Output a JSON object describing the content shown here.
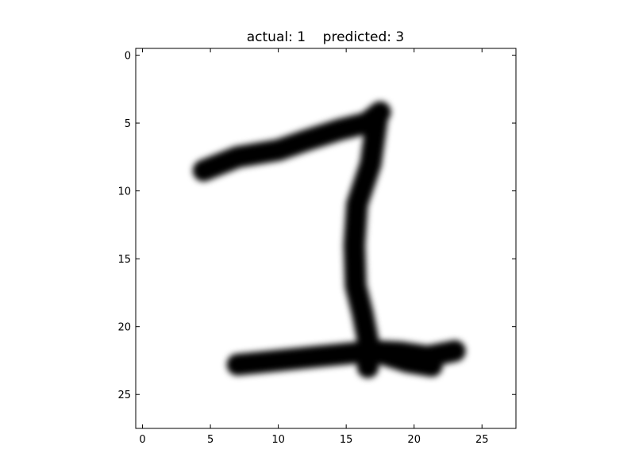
{
  "chart_data": {
    "type": "heatmap",
    "title": "actual: 1    predicted: 3",
    "colormap": "gray_r",
    "image_shape": [
      28,
      28
    ],
    "xlim": [
      -0.5,
      27.5
    ],
    "ylim": [
      27.5,
      -0.5
    ],
    "x_ticks": [
      0,
      5,
      10,
      15,
      20,
      25
    ],
    "y_ticks": [
      0,
      5,
      10,
      15,
      20,
      25
    ],
    "grid": false,
    "strokes": [
      {
        "part": "top-stroke",
        "points": [
          [
            4.5,
            8.5
          ],
          [
            7,
            7.5
          ],
          [
            10,
            7
          ],
          [
            12,
            6.3
          ],
          [
            14.5,
            5.5
          ],
          [
            16.5,
            5.0
          ],
          [
            17.5,
            4.2
          ]
        ]
      },
      {
        "part": "stem",
        "points": [
          [
            17.3,
            4.5
          ],
          [
            16.8,
            8
          ],
          [
            15.8,
            11
          ],
          [
            15.6,
            14
          ],
          [
            15.7,
            17
          ],
          [
            16.2,
            19
          ],
          [
            16.6,
            21
          ],
          [
            16.6,
            23
          ]
        ]
      },
      {
        "part": "base",
        "points": [
          [
            7,
            22.8
          ],
          [
            9,
            22.6
          ],
          [
            11,
            22.4
          ],
          [
            13,
            22.2
          ],
          [
            15,
            22.0
          ],
          [
            17,
            21.8
          ],
          [
            19,
            21.9
          ],
          [
            21,
            22.2
          ],
          [
            23,
            21.8
          ]
        ]
      },
      {
        "part": "base-tail",
        "points": [
          [
            17,
            21.8
          ],
          [
            19.5,
            22.6
          ],
          [
            21.3,
            22.9
          ]
        ]
      }
    ]
  }
}
